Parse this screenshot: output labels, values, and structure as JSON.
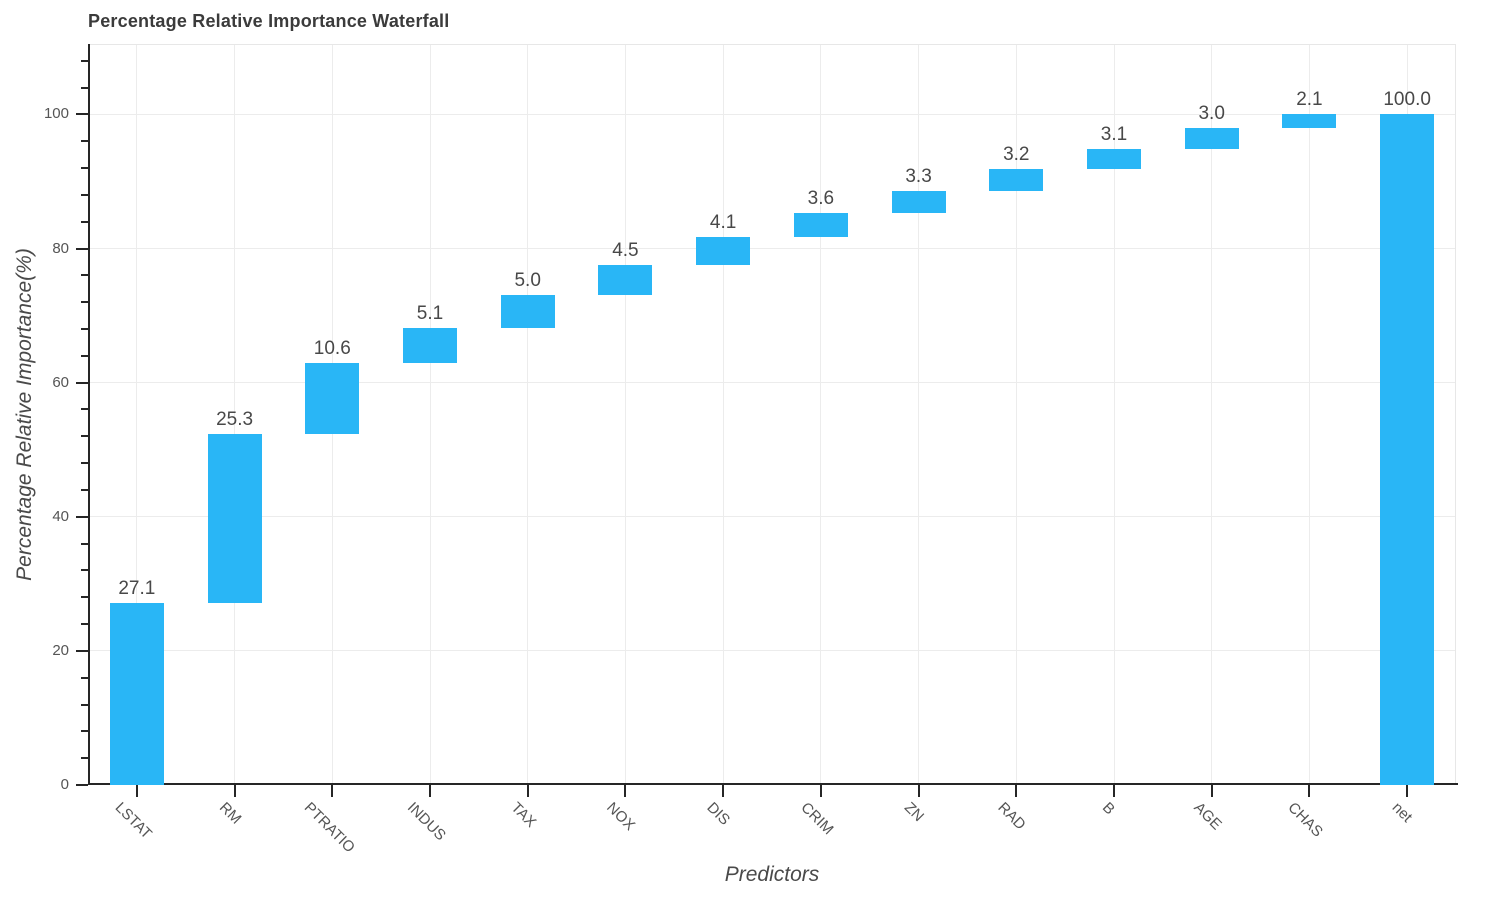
{
  "title": "Percentage Relative Importance Waterfall",
  "chart_data": {
    "type": "bar",
    "subtype": "waterfall",
    "title": "Percentage Relative Importance Waterfall",
    "xlabel": "Predictors",
    "ylabel": "Percentage Relative Importance(%)",
    "categories": [
      "LSTAT",
      "RM",
      "PTRATIO",
      "INDUS",
      "TAX",
      "NOX",
      "DIS",
      "CRIM",
      "ZN",
      "RAD",
      "B",
      "AGE",
      "CHAS",
      "net"
    ],
    "values": [
      27.1,
      25.3,
      10.6,
      5.1,
      5.0,
      4.5,
      4.1,
      3.6,
      3.3,
      3.2,
      3.1,
      3.0,
      2.1,
      100.0
    ],
    "value_labels": [
      "27.1",
      "25.3",
      "10.6",
      "5.1",
      "5.0",
      "4.5",
      "4.1",
      "3.6",
      "3.3",
      "3.2",
      "3.1",
      "3.0",
      "2.1",
      "100.0"
    ],
    "is_total": [
      false,
      false,
      false,
      false,
      false,
      false,
      false,
      false,
      false,
      false,
      false,
      false,
      false,
      true
    ],
    "cumulative_tops": [
      27.1,
      52.4,
      63.0,
      68.1,
      73.1,
      77.6,
      81.7,
      85.3,
      88.6,
      91.8,
      94.9,
      97.9,
      100.0,
      100.0
    ],
    "ylim": [
      0,
      110.5
    ],
    "y_major_ticks": [
      0,
      20,
      40,
      60,
      80,
      100
    ],
    "y_minor_step": 4,
    "grid": true,
    "legend": null
  },
  "colors": {
    "bar": "#29b6f6",
    "axis": "#262626",
    "grid": "#ececec",
    "spine_light": "#e7e7e7",
    "tick_label": "#555555",
    "value_label": "#484848",
    "title": "#3b3b3b",
    "axis_title": "#4a4a4a",
    "background": "#ffffff"
  }
}
